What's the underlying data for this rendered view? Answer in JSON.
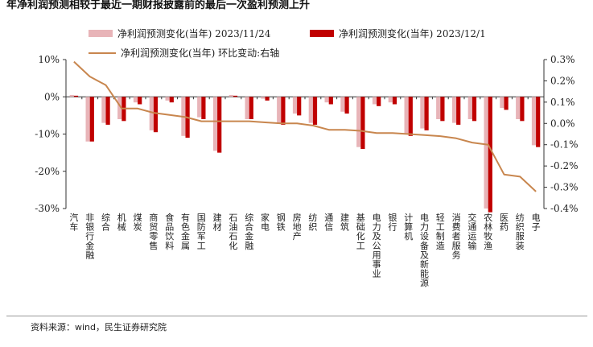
{
  "title": "年净利润预测相较于最近一期财报披露前的最后一次盈利预测上升",
  "source": "资料来源：wind，民生证券研究院",
  "colors": {
    "series1": "#E8B4B8",
    "series2": "#C00000",
    "line": "#C8864E",
    "axis": "#333333"
  },
  "chart_data": {
    "type": "bar+line",
    "categories": [
      "汽车",
      "非银行金融",
      "综合",
      "机械",
      "煤炭",
      "商贸零售",
      "食品饮料",
      "有色金属",
      "国防军工",
      "建材",
      "石油石化",
      "综合金融",
      "家电",
      "钢铁",
      "房地产",
      "纺织",
      "通信",
      "建筑",
      "基础化工",
      "电力及公用事业",
      "银行",
      "计算机",
      "电力设备及新能源",
      "轻工制造",
      "消费者服务",
      "交通运输",
      "农林牧渔",
      "医药",
      "纺织服装",
      "电子"
    ],
    "series": [
      {
        "name": "净利润预测变化(当年) 2023/11/24",
        "axis": "left",
        "unit": "%",
        "values": [
          0.5,
          -12,
          -7,
          -6,
          -1.5,
          -9,
          -1,
          -10.5,
          -5.5,
          -14.5,
          0.5,
          -6,
          -0.5,
          -7,
          -4.5,
          -7,
          -1.5,
          -4,
          -13.5,
          -2,
          -1.5,
          -10,
          -8.5,
          -6,
          -7,
          -6,
          -30,
          -3,
          -6,
          -13
        ]
      },
      {
        "name": "净利润预测变化(当年) 2023/12/1",
        "axis": "left",
        "unit": "%",
        "values": [
          0.3,
          -12,
          -7.5,
          -6.5,
          -2,
          -9.5,
          -1.5,
          -11,
          -6,
          -15,
          0.3,
          -6,
          -1,
          -7.5,
          -5,
          -7.5,
          -2,
          -4.5,
          -14,
          -2.5,
          -2,
          -10.5,
          -9,
          -6.5,
          -7.5,
          -6.5,
          -31,
          -3.5,
          -6.5,
          -13.5
        ]
      },
      {
        "name": "净利润预测变化(当年) 环比变动:右轴",
        "axis": "right",
        "unit": "%",
        "values": [
          0.29,
          0.22,
          0.18,
          0.07,
          0.07,
          0.05,
          0.04,
          0.03,
          0.01,
          0.01,
          0.01,
          0.01,
          0.005,
          0.0,
          0.0,
          -0.01,
          -0.03,
          -0.03,
          -0.035,
          -0.045,
          -0.045,
          -0.05,
          -0.055,
          -0.06,
          -0.07,
          -0.09,
          -0.1,
          -0.24,
          -0.25,
          -0.32
        ]
      }
    ],
    "left_axis": {
      "min": -30,
      "max": 10,
      "ticks": [
        10,
        0,
        -10,
        -20,
        -30
      ],
      "tick_labels": [
        "10%",
        "0%",
        "-10%",
        "-20%",
        "-30%"
      ]
    },
    "right_axis": {
      "min": -0.4,
      "max": 0.3,
      "ticks": [
        0.3,
        0.2,
        0.1,
        0.0,
        -0.1,
        -0.2,
        -0.3,
        -0.4
      ],
      "tick_labels": [
        "0.3%",
        "0.2%",
        "0.1%",
        "0.0%",
        "-0.1%",
        "-0.2%",
        "-0.3%",
        "-0.4%"
      ]
    }
  }
}
